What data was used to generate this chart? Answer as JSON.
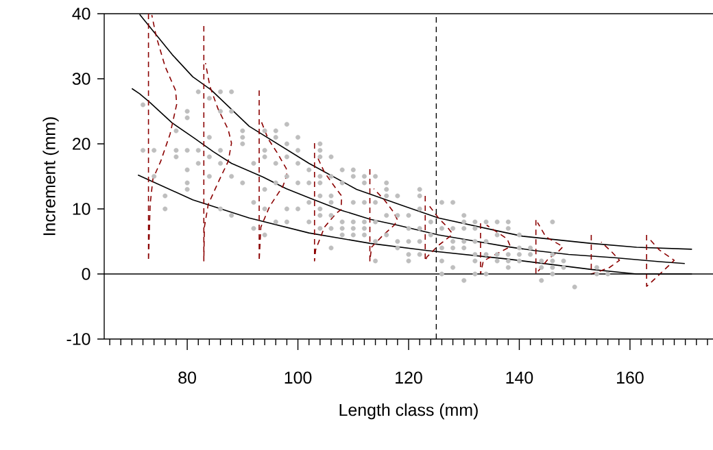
{
  "chart_data": {
    "type": "line",
    "xlabel": "Length class (mm)",
    "ylabel": "Increment (mm)",
    "xlim": [
      65,
      175
    ],
    "ylim": [
      -10,
      40
    ],
    "xticks": [
      {
        "value": 66,
        "label": null
      },
      {
        "value": 68,
        "label": null
      },
      {
        "value": 70,
        "label": null
      },
      {
        "value": 72,
        "label": null
      },
      {
        "value": 74,
        "label": null
      },
      {
        "value": 76,
        "label": null
      },
      {
        "value": 78,
        "label": null
      },
      80,
      {
        "value": 82,
        "label": null
      },
      {
        "value": 84,
        "label": null
      },
      {
        "value": 86,
        "label": null
      },
      {
        "value": 88,
        "label": null
      },
      {
        "value": 90,
        "label": null
      },
      {
        "value": 92,
        "label": null
      },
      {
        "value": 94,
        "label": null
      },
      {
        "value": 96,
        "label": null
      },
      {
        "value": 98,
        "label": null
      },
      100,
      {
        "value": 102,
        "label": null
      },
      {
        "value": 104,
        "label": null
      },
      {
        "value": 106,
        "label": null
      },
      {
        "value": 108,
        "label": null
      },
      {
        "value": 110,
        "label": null
      },
      {
        "value": 112,
        "label": null
      },
      {
        "value": 114,
        "label": null
      },
      {
        "value": 116,
        "label": null
      },
      {
        "value": 118,
        "label": null
      },
      120,
      {
        "value": 122,
        "label": null
      },
      {
        "value": 124,
        "label": null
      },
      {
        "value": 126,
        "label": null
      },
      {
        "value": 128,
        "label": null
      },
      {
        "value": 130,
        "label": null
      },
      {
        "value": 132,
        "label": null
      },
      {
        "value": 134,
        "label": null
      },
      {
        "value": 136,
        "label": null
      },
      {
        "value": 138,
        "label": null
      },
      140,
      {
        "value": 142,
        "label": null
      },
      {
        "value": 144,
        "label": null
      },
      {
        "value": 146,
        "label": null
      },
      {
        "value": 148,
        "label": null
      },
      {
        "value": 150,
        "label": null
      },
      {
        "value": 152,
        "label": null
      },
      {
        "value": 154,
        "label": null
      },
      {
        "value": 156,
        "label": null
      },
      {
        "value": 158,
        "label": null
      },
      160,
      {
        "value": 162,
        "label": null
      },
      {
        "value": 164,
        "label": null
      },
      {
        "value": 166,
        "label": null
      },
      {
        "value": 168,
        "label": null
      },
      {
        "value": 170,
        "label": null
      },
      {
        "value": 172,
        "label": null
      },
      {
        "value": 174,
        "label": null
      }
    ],
    "yticks": [
      -10,
      0,
      10,
      20,
      30,
      40
    ],
    "ref_lines": [
      {
        "axis": "y",
        "value": 0,
        "color": "#000000",
        "line_style": "solid"
      },
      {
        "axis": "x",
        "value": 125,
        "color": "#000000",
        "line_style": "dashed"
      }
    ],
    "series": [
      {
        "type": "scatter",
        "marker": "circle",
        "color": "#bebebe",
        "x": [
          72,
          72,
          74,
          74,
          76,
          76,
          78,
          78,
          78,
          80,
          80,
          80,
          80,
          80,
          80,
          82,
          82,
          82,
          84,
          84,
          84,
          84,
          86,
          86,
          86,
          86,
          86,
          88,
          88,
          88,
          88,
          90,
          90,
          90,
          90,
          92,
          92,
          92,
          94,
          94,
          94,
          94,
          94,
          94,
          96,
          96,
          96,
          96,
          96,
          98,
          98,
          98,
          98,
          98,
          98,
          100,
          100,
          100,
          100,
          100,
          102,
          102,
          102,
          102,
          104,
          104,
          104,
          104,
          104,
          104,
          104,
          104,
          104,
          106,
          106,
          106,
          106,
          106,
          106,
          106,
          108,
          108,
          108,
          108,
          108,
          110,
          110,
          110,
          110,
          110,
          110,
          112,
          112,
          112,
          112,
          112,
          112,
          114,
          114,
          114,
          114,
          114,
          116,
          116,
          116,
          116,
          116,
          118,
          118,
          118,
          118,
          120,
          120,
          120,
          120,
          120,
          122,
          122,
          122,
          122,
          122,
          122,
          124,
          124,
          126,
          126,
          126,
          126,
          126,
          128,
          128,
          128,
          128,
          128,
          130,
          130,
          130,
          130,
          130,
          130,
          132,
          132,
          132,
          132,
          132,
          132,
          134,
          134,
          134,
          134,
          136,
          136,
          136,
          136,
          138,
          138,
          138,
          138,
          138,
          140,
          140,
          140,
          140,
          142,
          142,
          144,
          144,
          144,
          146,
          146,
          146,
          146,
          146,
          148,
          148,
          150,
          154,
          154,
          156
        ],
        "values": [
          26,
          19,
          19,
          15,
          12,
          10,
          22,
          19,
          18,
          25,
          24,
          19,
          16,
          14,
          13,
          28,
          19,
          17,
          27,
          21,
          18,
          15,
          28,
          25,
          19,
          17,
          10,
          28,
          25,
          15,
          9,
          22,
          21,
          20,
          14,
          17,
          11,
          7,
          22,
          19,
          18,
          13,
          10,
          6,
          22,
          21,
          17,
          14,
          8,
          23,
          20,
          18,
          15,
          10,
          8,
          21,
          19,
          17,
          14,
          10,
          16,
          14,
          11,
          8,
          20,
          19,
          18,
          15,
          14,
          12,
          10,
          9,
          7,
          18,
          15,
          12,
          11,
          9,
          7,
          4,
          16,
          14,
          8,
          7,
          6,
          16,
          15,
          11,
          8,
          7,
          6,
          15,
          14,
          11,
          8,
          7,
          6,
          15,
          11,
          8,
          5,
          2,
          14,
          13,
          12,
          9,
          6,
          12,
          9,
          5,
          4,
          9,
          7,
          5,
          3,
          2,
          13,
          12,
          10,
          7,
          5,
          3,
          8,
          6,
          11,
          7,
          4,
          2,
          0,
          11,
          7,
          5,
          4,
          1,
          9,
          8,
          7,
          5,
          4,
          -1,
          8,
          7,
          5,
          3,
          2,
          0,
          8,
          5,
          3,
          0,
          8,
          6,
          3,
          2,
          8,
          7,
          3,
          2,
          1,
          6,
          4,
          3,
          2,
          4,
          3,
          2,
          1,
          -1,
          8,
          3,
          2,
          1,
          0,
          2,
          1,
          -2,
          1,
          0,
          0
        ]
      },
      {
        "marker": "none",
        "line_style": "solid",
        "color": "#000000",
        "x": [
          71.4,
          77.3,
          81.0,
          84.3,
          91.2,
          102.0,
          110.6,
          119.3,
          125.4,
          137.8,
          140.6,
          153.0,
          161.2,
          171.2
        ],
        "values": [
          39.9,
          33.7,
          30.3,
          28.3,
          22.7,
          17.0,
          13.0,
          10.4,
          8.6,
          6.3,
          5.8,
          4.7,
          4.1,
          3.8
        ]
      },
      {
        "marker": "none",
        "line_style": "solid",
        "color": "#000000",
        "x": [
          70.0,
          71.4,
          73.2,
          77.3,
          81.4,
          84.7,
          88.0,
          93.7,
          97.9,
          102.0,
          107.8,
          113.1,
          118.0,
          125.4,
          131.6,
          137.8,
          142.7,
          148.9,
          157.2,
          165.3,
          169.9
        ],
        "values": [
          28.5,
          27.7,
          26.4,
          23.2,
          20.8,
          18.8,
          17.0,
          14.9,
          13.1,
          11.7,
          9.8,
          8.4,
          7.5,
          6.0,
          5.1,
          4.2,
          3.6,
          3.0,
          2.5,
          1.9,
          1.6
        ]
      },
      {
        "marker": "none",
        "line_style": "solid",
        "color": "#000000",
        "x": [
          71.1,
          81.0,
          91.2,
          102.0,
          113.1,
          123.3,
          137.8,
          153.0,
          161.2,
          171.2
        ],
        "values": [
          15.2,
          11.4,
          8.6,
          6.3,
          4.7,
          3.6,
          2.3,
          0.7,
          0.0,
          0.0
        ]
      },
      {
        "marker": "none",
        "line_style": "dashed",
        "color": "#8b0000",
        "x": [
          73,
          73,
          73.3,
          73.8,
          75.2,
          76.9,
          78.1,
          77.9,
          76.0,
          74.4,
          73.6
        ],
        "values": [
          40,
          2,
          10.7,
          14.6,
          17.3,
          21.5,
          26.1,
          28.2,
          31.9,
          36.5,
          39.8
        ]
      },
      {
        "marker": "none",
        "line_style": "dashed",
        "color": "#8b0000",
        "x": [
          83,
          83,
          83.1,
          83.8,
          85.6,
          87.4,
          88.0,
          87.4,
          85.6,
          84.1,
          83.3
        ],
        "values": [
          38.1,
          2,
          7.2,
          10.7,
          14.1,
          17.3,
          20.1,
          22.2,
          25.3,
          28.8,
          32.4
        ]
      },
      {
        "marker": "none",
        "line_style": "dashed",
        "color": "#8b0000",
        "x": [
          93,
          93,
          93.3,
          94.9,
          97.3,
          98.0,
          97.9,
          96.2,
          94.6,
          93.3
        ],
        "values": [
          28.2,
          2,
          7.2,
          10.4,
          13.5,
          15.2,
          16.2,
          18.7,
          20.8,
          23.6
        ]
      },
      {
        "marker": "none",
        "line_style": "dashed",
        "color": "#8b0000",
        "x": [
          103,
          103,
          103.2,
          104.8,
          106.9,
          107.8,
          107.9,
          106.9,
          104.8,
          103.5
        ],
        "values": [
          20.1,
          2,
          3.7,
          7.2,
          9.3,
          9.9,
          12.0,
          13.1,
          15.6,
          18.0
        ]
      },
      {
        "marker": "none",
        "line_style": "dashed",
        "color": "#8b0000",
        "x": [
          113,
          113,
          113.3,
          115.2,
          117.4,
          118.0,
          117.2,
          115.6,
          113.7
        ],
        "values": [
          16.1,
          2,
          4.1,
          5.8,
          7.5,
          8.3,
          9.6,
          11.4,
          13.1
        ]
      },
      {
        "marker": "none",
        "line_style": "dashed",
        "color": "#8b0000",
        "x": [
          123,
          123,
          123.3,
          125.4,
          127.5,
          127.9,
          127.0,
          125.4,
          123.8
        ],
        "values": [
          12.0,
          2,
          2.6,
          4.4,
          5.8,
          6.2,
          7.2,
          8.6,
          10.4
        ]
      },
      {
        "marker": "none",
        "line_style": "dashed",
        "color": "#8b0000",
        "x": [
          133,
          133,
          133.5,
          135.7,
          138.4,
          137.8,
          134.1
        ],
        "values": [
          7.8,
          0,
          2.0,
          3.0,
          4.2,
          5.4,
          7.5
        ]
      },
      {
        "marker": "none",
        "line_style": "dashed",
        "color": "#8b0000",
        "x": [
          143,
          143,
          145.2,
          147.0,
          147.9,
          144.8,
          143.3
        ],
        "values": [
          8.3,
          0,
          2.3,
          3.4,
          4.2,
          5.7,
          7.9
        ]
      },
      {
        "marker": "none",
        "line_style": "dashed",
        "color": "#8b0000",
        "x": [
          153,
          153,
          153.8,
          156.3,
          158.1,
          156.7,
          154.8
        ],
        "values": [
          6.0,
          0,
          0.2,
          1.0,
          2.1,
          3.4,
          4.9
        ]
      },
      {
        "marker": "none",
        "line_style": "dashed",
        "color": "#8b0000",
        "x": [
          163,
          163,
          163.3,
          165.3,
          168.0,
          165.3,
          163.7
        ],
        "values": [
          6.0,
          -1.9,
          -1.7,
          -0.1,
          2.1,
          3.7,
          5.2
        ]
      }
    ]
  }
}
